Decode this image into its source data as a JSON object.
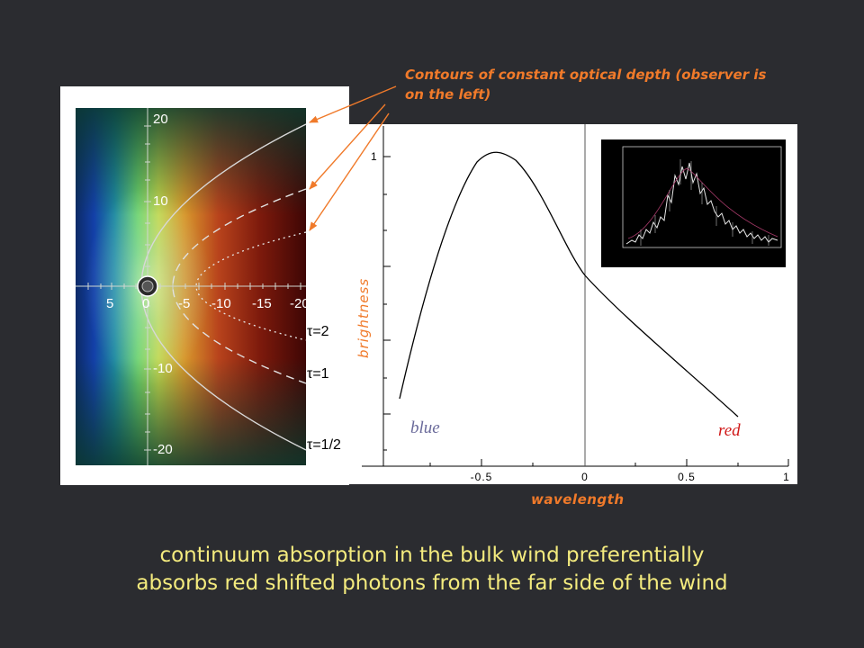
{
  "annotation": {
    "line1": "Contours of constant optical depth (observer is",
    "line2": "on the left)"
  },
  "contour_plot": {
    "y_ticks": [
      "20",
      "10",
      "-10",
      "-20"
    ],
    "x_ticks": [
      "5",
      "0",
      "-5",
      "-10",
      "-15",
      "-20"
    ],
    "tau_labels": [
      "τ=2",
      "τ=1",
      "τ=1/2"
    ]
  },
  "line_plot": {
    "ylabel": "brightness",
    "xlabel": "wavelength",
    "y_tick": "1",
    "x_ticks": [
      "-0.5",
      "0",
      "0.5",
      "1"
    ],
    "blue_label": "blue",
    "red_label": "red"
  },
  "caption": {
    "line1": "continuum absorption in the bulk wind preferentially",
    "line2": "absorbs red shifted photons from the far side of the wind"
  },
  "colors": {
    "annotation": "#f07a2a",
    "caption": "#f4eb7e",
    "background": "#2b2c30"
  }
}
